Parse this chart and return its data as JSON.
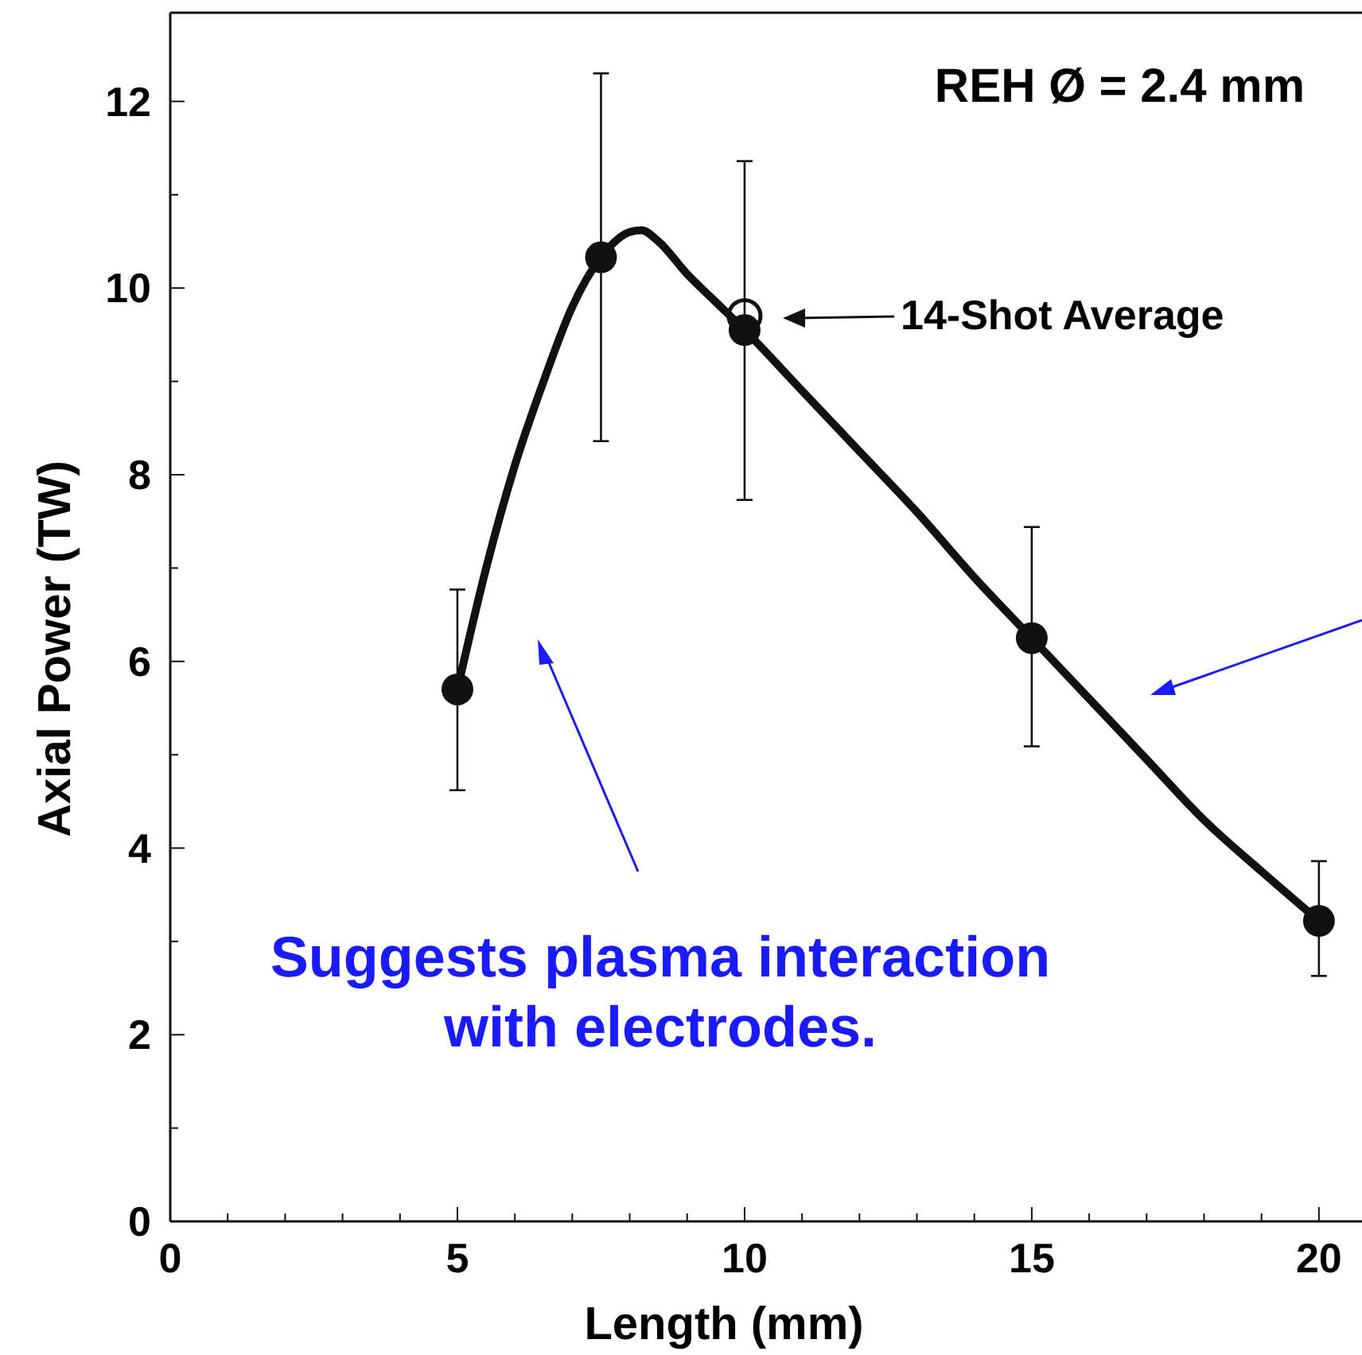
{
  "chart_data": {
    "type": "scatter",
    "xlabel": "Length (mm)",
    "ylabel": "Axial Power (TW)",
    "xlim": [
      0,
      20.75
    ],
    "ylim": [
      0,
      12.95
    ],
    "xticks": [
      0,
      {
        "value": 1,
        "label": null
      },
      {
        "value": 2,
        "label": null
      },
      {
        "value": 3,
        "label": null
      },
      {
        "value": 4,
        "label": null
      },
      5,
      {
        "value": 6,
        "label": null
      },
      {
        "value": 7,
        "label": null
      },
      {
        "value": 8,
        "label": null
      },
      {
        "value": 9,
        "label": null
      },
      10,
      {
        "value": 11,
        "label": null
      },
      {
        "value": 12,
        "label": null
      },
      {
        "value": 13,
        "label": null
      },
      {
        "value": 14,
        "label": null
      },
      15,
      {
        "value": 16,
        "label": null
      },
      {
        "value": 17,
        "label": null
      },
      {
        "value": 18,
        "label": null
      },
      {
        "value": 19,
        "label": null
      },
      20
    ],
    "yticks": [
      0,
      {
        "value": 1,
        "label": null
      },
      2,
      {
        "value": 3,
        "label": null
      },
      4,
      {
        "value": 5,
        "label": null
      },
      6,
      {
        "value": 7,
        "label": null
      },
      8,
      {
        "value": 9,
        "label": null
      },
      10,
      {
        "value": 11,
        "label": null
      },
      12
    ],
    "marker": "circle",
    "series": [
      {
        "type": "line",
        "marker": "none",
        "color": "#111111",
        "x": [
          5,
          5.5,
          6,
          6.5,
          7,
          7.5,
          8,
          8.2,
          8.5,
          9,
          9.5,
          10,
          11,
          12,
          13,
          14,
          15,
          16,
          17,
          18,
          19,
          20
        ],
        "values": [
          5.7,
          7.0,
          8.1,
          9.0,
          9.8,
          10.33,
          10.6,
          10.62,
          10.5,
          10.15,
          9.85,
          9.55,
          8.9,
          8.25,
          7.6,
          6.9,
          6.25,
          5.6,
          4.95,
          4.3,
          3.75,
          3.22
        ]
      },
      {
        "color": "#111111",
        "x": [
          5,
          7.5,
          10,
          15,
          20
        ],
        "values": [
          5.7,
          10.33,
          9.55,
          6.25,
          3.22
        ],
        "errors": [
          [
            4.62,
            6.77
          ],
          [
            8.36,
            12.3
          ],
          [
            7.73,
            11.36
          ],
          [
            5.09,
            7.44
          ],
          [
            2.63,
            3.86
          ]
        ]
      },
      {
        "color": "#111111",
        "x": [
          10
        ],
        "values": [
          9.7
        ]
      }
    ],
    "annotations": [
      "REH Ø = 2.4 mm",
      "14-Shot Average",
      "Suggests plasma interaction\nwith electrodes."
    ]
  }
}
